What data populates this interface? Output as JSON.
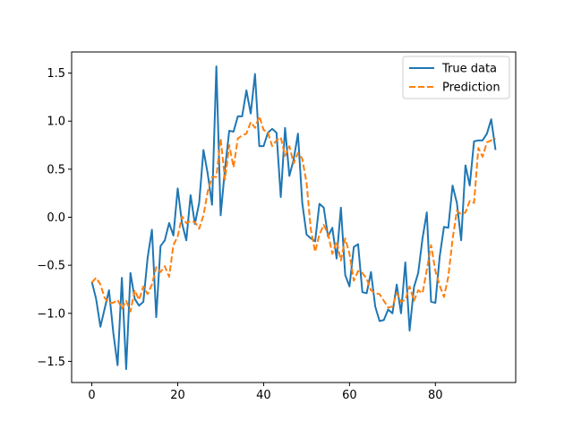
{
  "chart_data": {
    "type": "line",
    "title": "",
    "xlabel": "",
    "ylabel": "",
    "xlim": [
      -4.7,
      98.7
    ],
    "ylim": [
      -1.72,
      1.72
    ],
    "xticks": [
      0,
      20,
      40,
      60,
      80
    ],
    "xtick_labels": [
      "0",
      "20",
      "40",
      "60",
      "80"
    ],
    "yticks": [
      -1.5,
      -1.0,
      -0.5,
      0.0,
      0.5,
      1.0,
      1.5
    ],
    "ytick_labels": [
      "−1.5",
      "−1.0",
      "−0.5",
      "0.0",
      "0.5",
      "1.0",
      "1.5"
    ],
    "grid": false,
    "legend_position": "upper right",
    "x": [
      0,
      1,
      2,
      3,
      4,
      5,
      6,
      7,
      8,
      9,
      10,
      11,
      12,
      13,
      14,
      15,
      16,
      17,
      18,
      19,
      20,
      21,
      22,
      23,
      24,
      25,
      26,
      27,
      28,
      29,
      30,
      31,
      32,
      33,
      34,
      35,
      36,
      37,
      38,
      39,
      40,
      41,
      42,
      43,
      44,
      45,
      46,
      47,
      48,
      49,
      50,
      51,
      52,
      53,
      54,
      55,
      56,
      57,
      58,
      59,
      60,
      61,
      62,
      63,
      64,
      65,
      66,
      67,
      68,
      69,
      70,
      71,
      72,
      73,
      74,
      75,
      76,
      77,
      78,
      79,
      80,
      81,
      82,
      83,
      84,
      85,
      86,
      87,
      88,
      89,
      90,
      91,
      92,
      93,
      94
    ],
    "series": [
      {
        "name": "True data",
        "color": "#1f77b4",
        "style": "solid",
        "values": [
          -0.67,
          -0.85,
          -1.14,
          -0.95,
          -0.76,
          -1.2,
          -1.54,
          -0.63,
          -1.58,
          -0.58,
          -0.85,
          -0.92,
          -0.88,
          -0.42,
          -0.13,
          -1.04,
          -0.3,
          -0.24,
          -0.06,
          -0.19,
          0.3,
          -0.06,
          -0.24,
          0.23,
          -0.07,
          0.15,
          0.7,
          0.45,
          0.13,
          1.57,
          0.02,
          0.5,
          0.9,
          0.89,
          1.05,
          1.05,
          1.32,
          1.08,
          1.49,
          0.74,
          0.74,
          0.88,
          0.92,
          0.88,
          0.21,
          0.93,
          0.43,
          0.6,
          0.87,
          0.15,
          -0.18,
          -0.22,
          -0.25,
          0.14,
          0.1,
          -0.2,
          -0.11,
          -0.43,
          0.1,
          -0.6,
          -0.72,
          -0.31,
          -0.28,
          -0.78,
          -0.79,
          -0.57,
          -0.93,
          -1.08,
          -1.07,
          -0.96,
          -1.0,
          -0.7,
          -1.0,
          -0.47,
          -1.18,
          -0.73,
          -0.58,
          -0.22,
          0.05,
          -0.88,
          -0.89,
          -0.41,
          -0.1,
          -0.11,
          0.33,
          0.15,
          -0.24,
          0.54,
          0.33,
          0.79,
          0.8,
          0.8,
          0.87,
          1.02,
          0.7
        ]
      },
      {
        "name": "Prediction",
        "color": "#ff7f0e",
        "style": "dashed",
        "values": [
          -0.68,
          -0.63,
          -0.7,
          -0.84,
          -0.89,
          -0.89,
          -0.86,
          -0.95,
          -0.87,
          -0.98,
          -0.76,
          -0.86,
          -0.72,
          -0.8,
          -0.7,
          -0.52,
          -0.57,
          -0.51,
          -0.62,
          -0.29,
          -0.2,
          0.01,
          -0.06,
          -0.04,
          -0.05,
          -0.12,
          0.02,
          0.27,
          0.42,
          0.42,
          0.82,
          0.39,
          0.75,
          0.52,
          0.82,
          0.85,
          0.87,
          0.99,
          0.93,
          1.05,
          0.91,
          0.88,
          0.74,
          0.8,
          0.83,
          0.64,
          0.74,
          0.56,
          0.67,
          0.61,
          0.36,
          -0.13,
          -0.36,
          -0.18,
          -0.08,
          -0.17,
          -0.38,
          -0.25,
          -0.45,
          -0.22,
          -0.38,
          -0.66,
          -0.56,
          -0.58,
          -0.64,
          -0.76,
          -0.79,
          -0.8,
          -0.87,
          -0.94,
          -0.93,
          -0.79,
          -0.88,
          -0.86,
          -0.72,
          -0.87,
          -0.76,
          -0.79,
          -0.55,
          -0.29,
          -0.56,
          -0.71,
          -0.83,
          -0.62,
          -0.23,
          0.07,
          0.03,
          0.05,
          0.17,
          0.15,
          0.72,
          0.63,
          0.78,
          0.8,
          0.82
        ]
      }
    ]
  }
}
